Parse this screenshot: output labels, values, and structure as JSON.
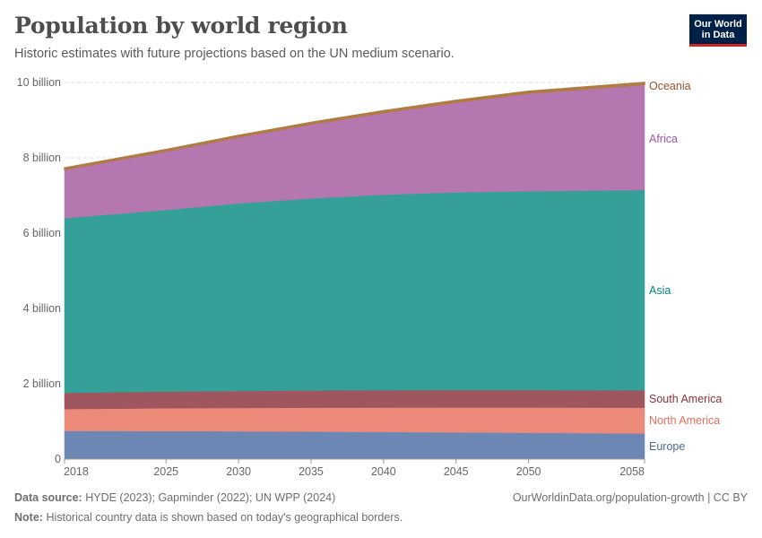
{
  "header": {
    "title": "Population by world region",
    "subtitle": "Historic estimates with future projections based on the UN medium scenario.",
    "logo_line1": "Our World",
    "logo_line2": "in Data"
  },
  "footer": {
    "source_label": "Data source:",
    "source_text": "HYDE (2023); Gapminder (2022); UN WPP (2024)",
    "url_license": "OurWorldinData.org/population-growth | CC BY",
    "note_label": "Note:",
    "note_text": "Historical country data is shown based on today's geographical borders."
  },
  "chart_data": {
    "type": "area",
    "stacked": true,
    "x": [
      2018,
      2025,
      2030,
      2035,
      2040,
      2045,
      2050,
      2058
    ],
    "x_ticks": [
      2018,
      2025,
      2030,
      2035,
      2040,
      2045,
      2050,
      2058
    ],
    "ylim": [
      0,
      10000000000
    ],
    "y_ticks": [
      {
        "value": 0,
        "label": "0"
      },
      {
        "value": 2000000000,
        "label": "2 billion"
      },
      {
        "value": 4000000000,
        "label": "4 billion"
      },
      {
        "value": 6000000000,
        "label": "6 billion"
      },
      {
        "value": 8000000000,
        "label": "8 billion"
      },
      {
        "value": 10000000000,
        "label": "10 billion"
      }
    ],
    "grid": true,
    "series": [
      {
        "name": "Europe",
        "color": "#6d87b4",
        "label_color": "#4c6a9c",
        "values": [
          750000000,
          745000000,
          738000000,
          730000000,
          720000000,
          710000000,
          700000000,
          680000000
        ]
      },
      {
        "name": "North America",
        "color": "#ec8a7a",
        "label_color": "#e56e5a",
        "values": [
          580000000,
          605000000,
          620000000,
          635000000,
          648000000,
          660000000,
          670000000,
          685000000
        ]
      },
      {
        "name": "South America",
        "color": "#a0565e",
        "label_color": "#883039",
        "values": [
          430000000,
          445000000,
          452000000,
          458000000,
          462000000,
          464000000,
          463000000,
          460000000
        ]
      },
      {
        "name": "Asia",
        "color": "#35a098",
        "label_color": "#00847e",
        "values": [
          4640000000,
          4820000000,
          4980000000,
          5100000000,
          5190000000,
          5250000000,
          5280000000,
          5320000000
        ]
      },
      {
        "name": "Africa",
        "color": "#b577b0",
        "label_color": "#a2559c",
        "values": [
          1290000000,
          1560000000,
          1760000000,
          1970000000,
          2180000000,
          2390000000,
          2600000000,
          2800000000
        ]
      },
      {
        "name": "Oceania",
        "color": "#b07b42",
        "label_color": "#9a5129",
        "values": [
          42000000,
          45000000,
          47000000,
          49000000,
          51000000,
          53000000,
          55000000,
          58000000
        ]
      }
    ]
  }
}
